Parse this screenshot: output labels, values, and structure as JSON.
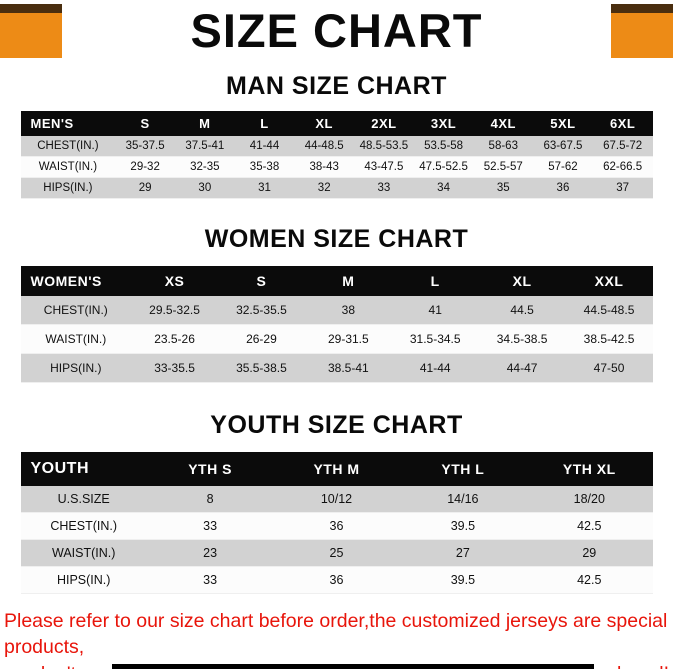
{
  "page": {
    "title": "SIZE CHART"
  },
  "tables": [
    {
      "heading": "MAN SIZE CHART",
      "header": [
        "MEN'S",
        "S",
        "M",
        "L",
        "XL",
        "2XL",
        "3XL",
        "4XL",
        "5XL",
        "6XL"
      ],
      "rows": [
        [
          "CHEST(IN.)",
          "35-37.5",
          "37.5-41",
          "41-44",
          "44-48.5",
          "48.5-53.5",
          "53.5-58",
          "58-63",
          "63-67.5",
          "67.5-72"
        ],
        [
          "WAIST(IN.)",
          "29-32",
          "32-35",
          "35-38",
          "38-43",
          "43-47.5",
          "47.5-52.5",
          "52.5-57",
          "57-62",
          "62-66.5"
        ],
        [
          "HIPS(IN.)",
          "29",
          "30",
          "31",
          "32",
          "33",
          "34",
          "35",
          "36",
          "37"
        ]
      ]
    },
    {
      "heading": "WOMEN SIZE CHART",
      "header": [
        "WOMEN'S",
        "XS",
        "S",
        "M",
        "L",
        "XL",
        "XXL"
      ],
      "rows": [
        [
          "CHEST(IN.)",
          "29.5-32.5",
          "32.5-35.5",
          "38",
          "41",
          "44.5",
          "44.5-48.5"
        ],
        [
          "WAIST(IN.)",
          "23.5-26",
          "26-29",
          "29-31.5",
          "31.5-34.5",
          "34.5-38.5",
          "38.5-42.5"
        ],
        [
          "HIPS(IN.)",
          "33-35.5",
          "35.5-38.5",
          "38.5-41",
          "41-44",
          "44-47",
          "47-50"
        ]
      ]
    },
    {
      "heading": "YOUTH SIZE CHART",
      "header": [
        "YOUTH",
        "YTH S",
        "YTH M",
        "YTH L",
        "YTH XL"
      ],
      "rows": [
        [
          "U.S.SIZE",
          "8",
          "10/12",
          "14/16",
          "18/20"
        ],
        [
          "CHEST(IN.)",
          "33",
          "36",
          "39.5",
          "42.5"
        ],
        [
          "WAIST(IN.)",
          "23",
          "25",
          "27",
          "29"
        ],
        [
          "HIPS(IN.)",
          "33",
          "36",
          "39.5",
          "42.5"
        ]
      ]
    }
  ],
  "footer": {
    "line1": "Please refer to our size chart before order,the customized jerseys are special products,",
    "line2": "we don't accept cancel, change, teturn or refund after order has been placed!"
  },
  "colors": {
    "accent_orange": "#ED8B16",
    "corner_dark": "#4A2E0F",
    "table_header_bg": "#0B0B0B",
    "row_gray": "#D2D2D2",
    "row_white": "#FCFCFC",
    "footer_red": "#E8150B"
  }
}
